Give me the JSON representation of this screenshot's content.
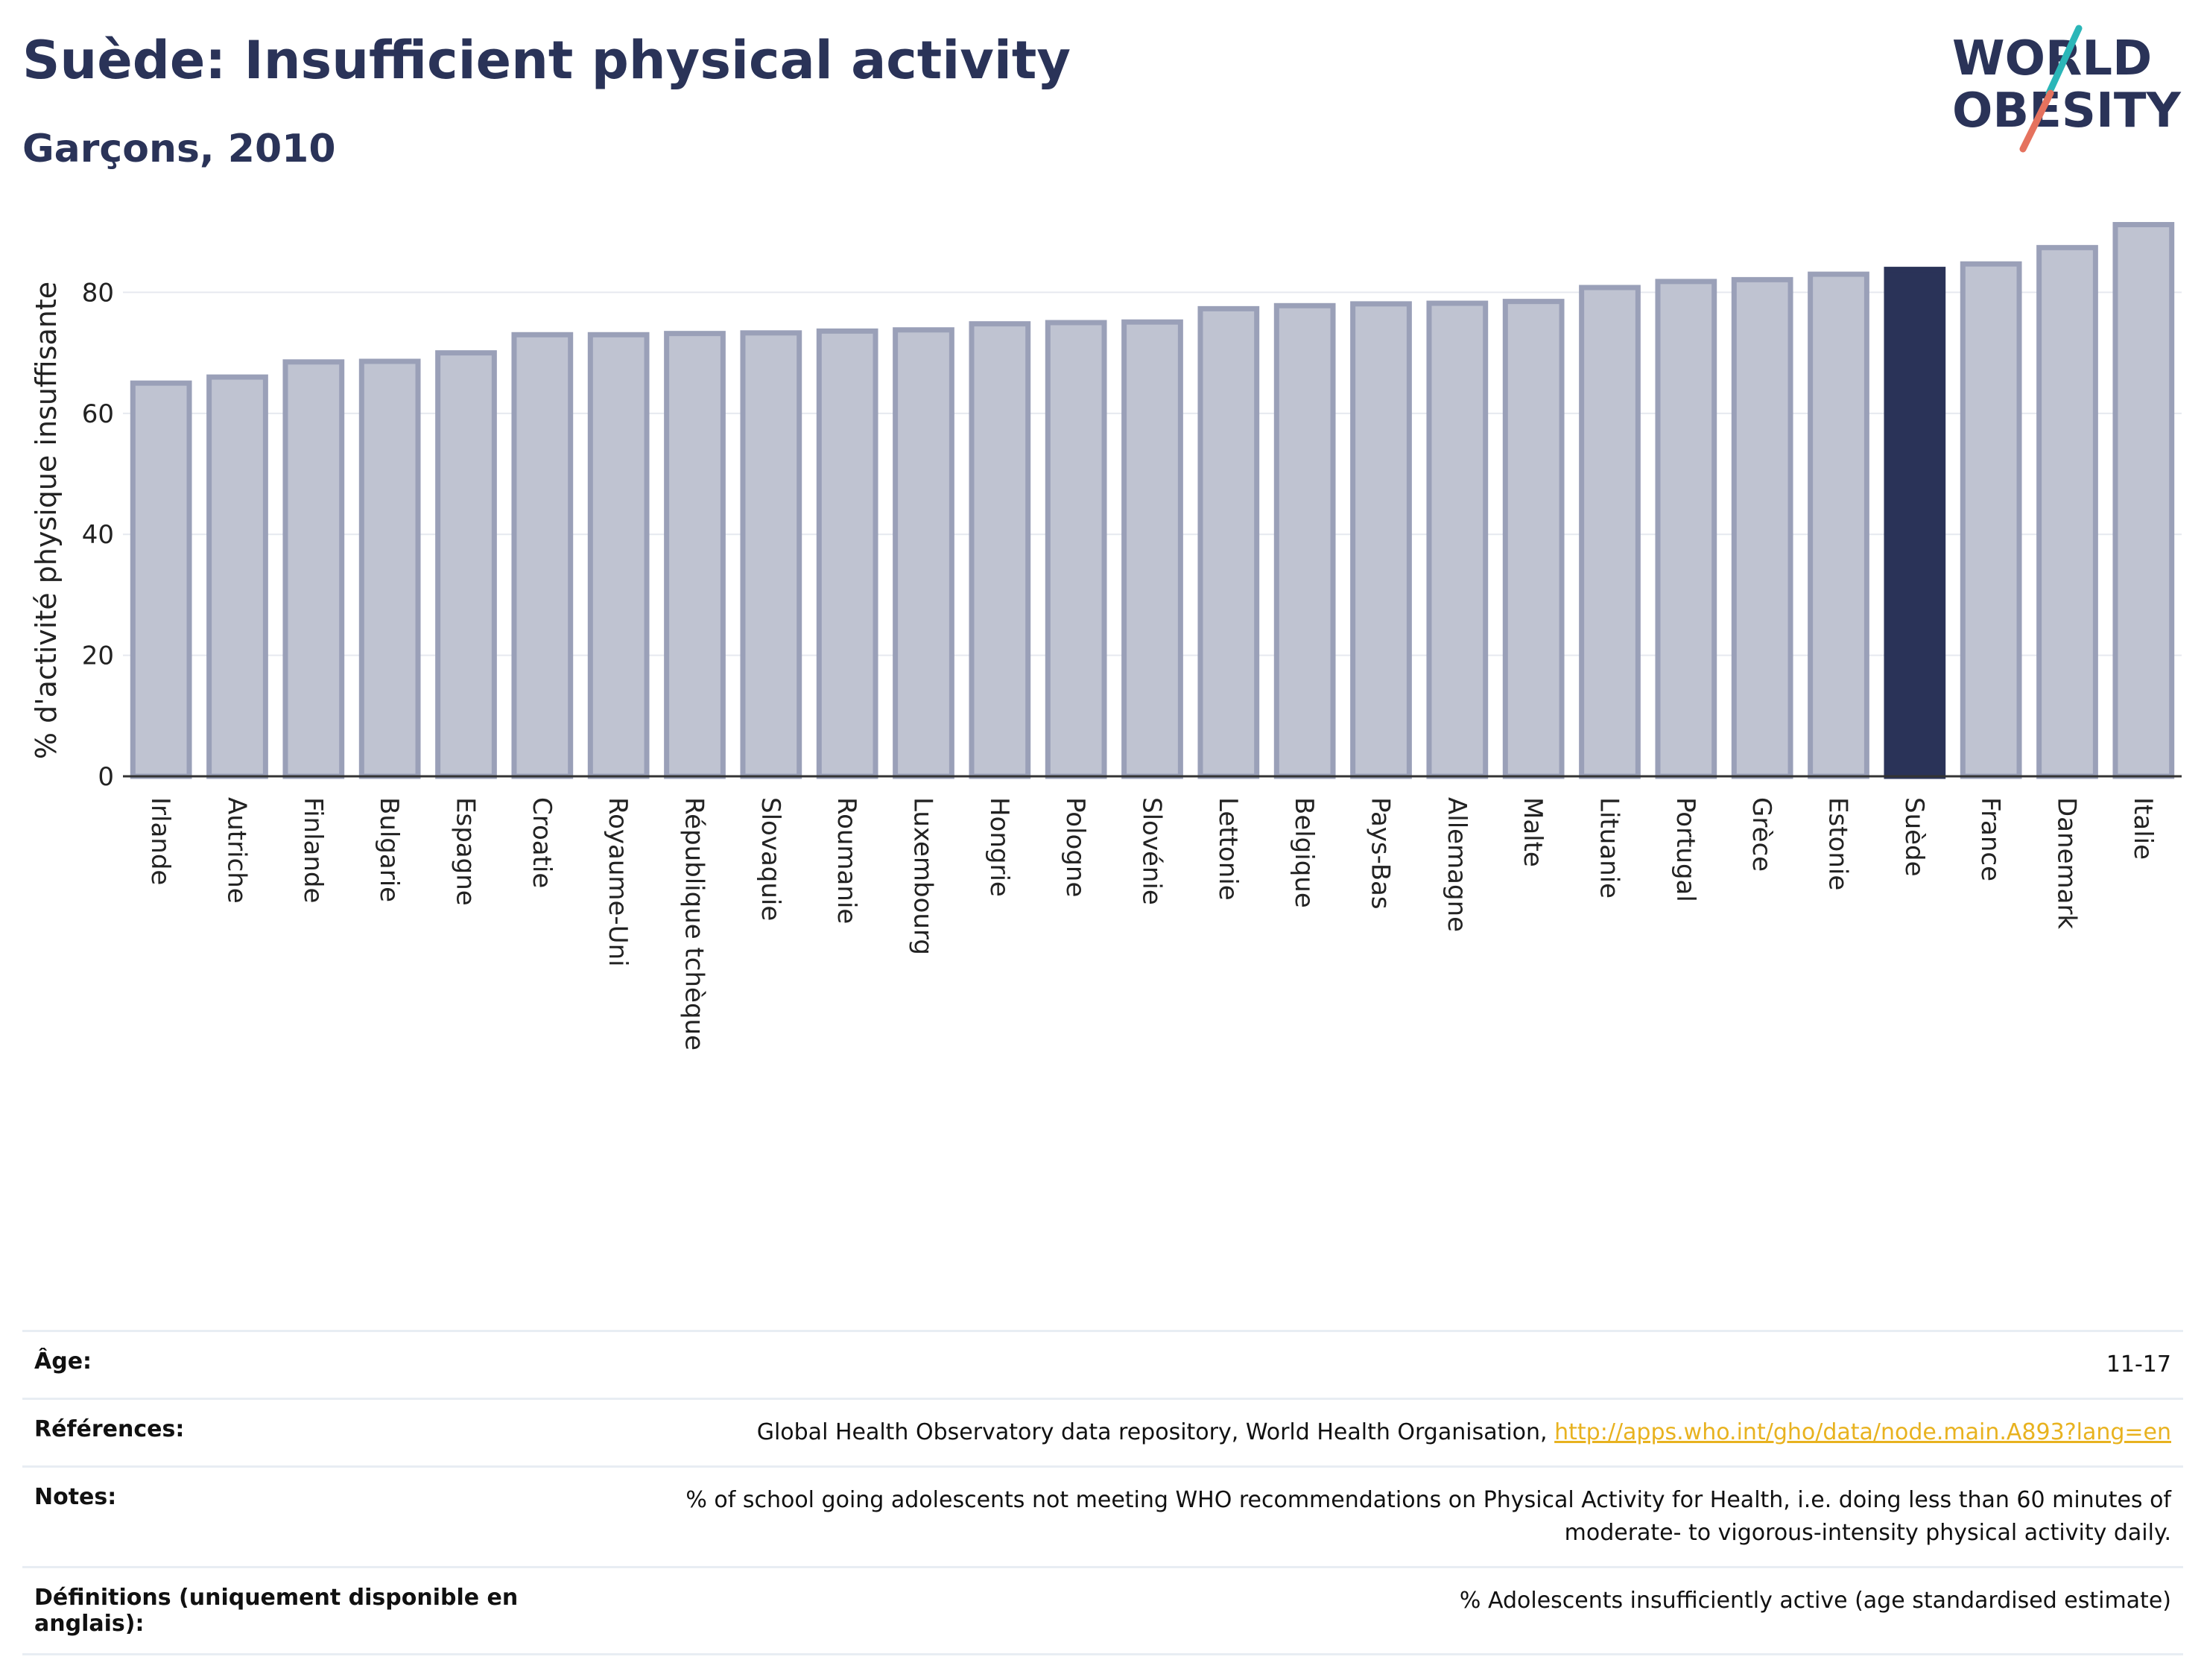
{
  "header": {
    "title": "Suède: Insufficient physical activity",
    "subtitle": "Garçons, 2010",
    "logo_line1": "WORLD",
    "logo_line2": "OBESITY"
  },
  "colors": {
    "highlight": "#2a3358",
    "bar": "#bfc3d1",
    "bar_edge": "#9aa0b8",
    "link": "#e8b21f"
  },
  "chart_data": {
    "type": "bar",
    "title": "",
    "xlabel": "",
    "ylabel": "% d'activité physique insuffisante",
    "ylim": [
      0,
      92
    ],
    "yticks": [
      0,
      20,
      40,
      60,
      80
    ],
    "grid": true,
    "highlight_category": "Suède",
    "categories": [
      "Irlande",
      "Autriche",
      "Finlande",
      "Bulgarie",
      "Espagne",
      "Croatie",
      "Royaume-Uni",
      "République tchèque",
      "Slovaquie",
      "Roumanie",
      "Luxembourg",
      "Hongrie",
      "Pologne",
      "Slovénie",
      "Lettonie",
      "Belgique",
      "Pays-Bas",
      "Allemagne",
      "Malte",
      "Lituanie",
      "Portugal",
      "Grèce",
      "Estonie",
      "Suède",
      "France",
      "Danemark",
      "Italie"
    ],
    "values": [
      65.0,
      66.0,
      68.5,
      68.6,
      70.0,
      73.0,
      73.0,
      73.2,
      73.3,
      73.6,
      73.8,
      74.8,
      75.0,
      75.1,
      77.3,
      77.8,
      78.1,
      78.2,
      78.5,
      80.8,
      81.8,
      82.1,
      83.0,
      83.8,
      84.7,
      87.4,
      91.2
    ]
  },
  "info": {
    "age_label": "Âge:",
    "age_value": "11-17",
    "refs_label": "Références:",
    "refs_text": "Global Health Observatory data repository, World Health Organisation,",
    "refs_link": "http://apps.who.int/gho/data/node.main.A893?lang=en",
    "notes_label": "Notes:",
    "notes_line1": "% of school going adolescents not meeting WHO recommendations on Physical Activity for Health, i.e. doing less than 60 minutes of",
    "notes_line2": "moderate- to vigorous-intensity physical activity daily.",
    "defs_label_line1": "Définitions (uniquement disponible en",
    "defs_label_line2": "anglais):",
    "defs_value": "% Adolescents insufficiently active (age standardised estimate)"
  }
}
